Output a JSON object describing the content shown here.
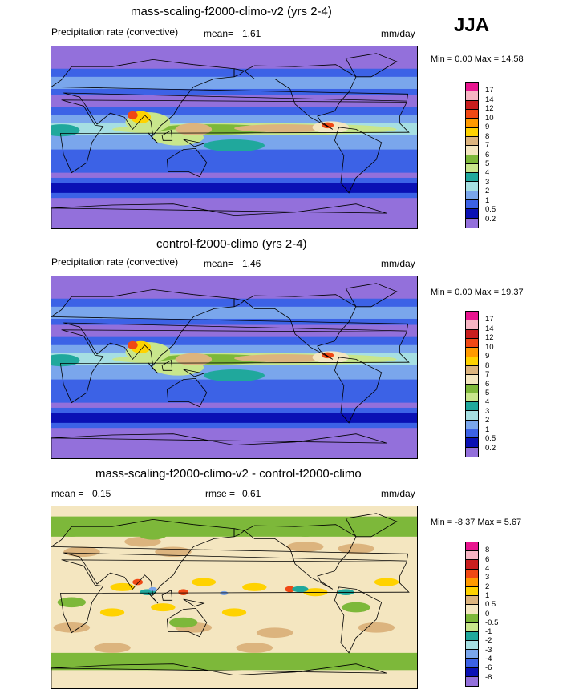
{
  "season": "JJA",
  "units": "mm/day",
  "panels": [
    {
      "title": "mass-scaling-f2000-climo-v2 (yrs 2-4)",
      "variable": "Precipitation rate (convective)",
      "mean_label": "mean=",
      "mean_value": "1.61",
      "units": "mm/day",
      "minmax": "Min =   0.00 Max =  14.58",
      "field_type": "precip",
      "levels": [
        "17",
        "14",
        "12",
        "10",
        "9",
        "8",
        "7",
        "6",
        "5",
        "4",
        "3",
        "2",
        "1",
        "0.5",
        "0.2"
      ],
      "colors": [
        "#e8158f",
        "#f6b5c3",
        "#c81e1e",
        "#f04814",
        "#ff9a00",
        "#ffd200",
        "#dcb47e",
        "#f4e6c0",
        "#7db83a",
        "#c8e68c",
        "#20a89c",
        "#a6dfe2",
        "#7aa6ec",
        "#3c62e6",
        "#0a10b4",
        "#9370db"
      ]
    },
    {
      "title": "control-f2000-climo (yrs 2-4)",
      "variable": "Precipitation rate (convective)",
      "mean_label": "mean=",
      "mean_value": "1.46",
      "units": "mm/day",
      "minmax": "Min =   0.00 Max =  19.37",
      "field_type": "precip",
      "levels": [
        "17",
        "14",
        "12",
        "10",
        "9",
        "8",
        "7",
        "6",
        "5",
        "4",
        "3",
        "2",
        "1",
        "0.5",
        "0.2"
      ],
      "colors": [
        "#e8158f",
        "#f6b5c3",
        "#c81e1e",
        "#f04814",
        "#ff9a00",
        "#ffd200",
        "#dcb47e",
        "#f4e6c0",
        "#7db83a",
        "#c8e68c",
        "#20a89c",
        "#a6dfe2",
        "#7aa6ec",
        "#3c62e6",
        "#0a10b4",
        "#9370db"
      ]
    },
    {
      "title": "mass-scaling-f2000-climo-v2 - control-f2000-climo",
      "mean_label": "mean =",
      "mean_value": "0.15",
      "rmse_label": "rmse =",
      "rmse_value": "0.61",
      "units": "mm/day",
      "minmax": "Min =  -8.37 Max =   5.67",
      "field_type": "diff",
      "levels": [
        "8",
        "6",
        "4",
        "3",
        "2",
        "1",
        "0.5",
        "0",
        "-0.5",
        "-1",
        "-2",
        "-3",
        "-4",
        "-6",
        "-8"
      ],
      "colors": [
        "#e8158f",
        "#f6b5c3",
        "#c81e1e",
        "#f04814",
        "#ff9a00",
        "#ffd200",
        "#dcb47e",
        "#f4e6c0",
        "#7db83a",
        "#c8e68c",
        "#20a89c",
        "#a6dfe2",
        "#7aa6ec",
        "#3c62e6",
        "#0a10b4",
        "#9370db"
      ]
    }
  ],
  "chart_data": [
    {
      "type": "heatmap",
      "title": "mass-scaling-f2000-climo-v2 (yrs 2-4)",
      "variable": "Precipitation rate (convective)",
      "units": "mm/day",
      "mean": 1.61,
      "min": 0.0,
      "max": 14.58,
      "contour_levels": [
        0.2,
        0.5,
        1,
        2,
        3,
        4,
        5,
        6,
        7,
        8,
        9,
        10,
        12,
        14,
        17
      ]
    },
    {
      "type": "heatmap",
      "title": "control-f2000-climo (yrs 2-4)",
      "variable": "Precipitation rate (convective)",
      "units": "mm/day",
      "mean": 1.46,
      "min": 0.0,
      "max": 19.37,
      "contour_levels": [
        0.2,
        0.5,
        1,
        2,
        3,
        4,
        5,
        6,
        7,
        8,
        9,
        10,
        12,
        14,
        17
      ]
    },
    {
      "type": "heatmap",
      "title": "mass-scaling-f2000-climo-v2 - control-f2000-climo",
      "units": "mm/day",
      "mean": 0.15,
      "rmse": 0.61,
      "min": -8.37,
      "max": 5.67,
      "contour_levels": [
        -8,
        -6,
        -4,
        -3,
        -2,
        -1,
        -0.5,
        0,
        0.5,
        1,
        2,
        3,
        4,
        6,
        8
      ]
    }
  ]
}
